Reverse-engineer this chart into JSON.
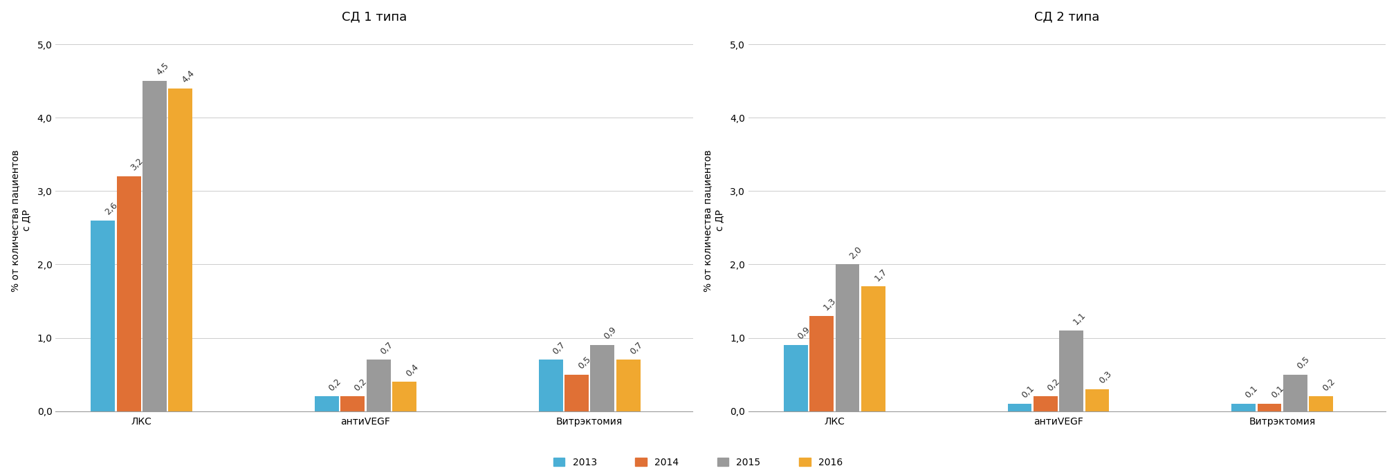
{
  "title1": "СД 1 типа",
  "title2": "СД 2 типа",
  "ylabel": "% от количества пациентов\nс ДР",
  "categories": [
    "ЛКС",
    "антиVEGF",
    "Витрэктомия"
  ],
  "legend_labels": [
    "2013",
    "2014",
    "2015",
    "2016"
  ],
  "colors": [
    "#4BAFD5",
    "#E07035",
    "#9A9A9A",
    "#F0A830"
  ],
  "sd1_data": {
    "ЛКС": [
      2.6,
      3.2,
      4.5,
      4.4
    ],
    "антиVEGF": [
      0.2,
      0.2,
      0.7,
      0.4
    ],
    "Витрэктомия": [
      0.7,
      0.5,
      0.9,
      0.7
    ]
  },
  "sd2_data": {
    "ЛКС": [
      0.9,
      1.3,
      2.0,
      1.7
    ],
    "антиVEGF": [
      0.1,
      0.2,
      1.1,
      0.3
    ],
    "Витрэктомия": [
      0.1,
      0.1,
      0.5,
      0.2
    ]
  },
  "ylim": [
    0,
    5.2
  ],
  "yticks": [
    0.0,
    1.0,
    2.0,
    3.0,
    4.0,
    5.0
  ],
  "ytick_labels": [
    "0,0",
    "1,0",
    "2,0",
    "3,0",
    "4,0",
    "5,0"
  ],
  "bar_width": 0.14,
  "annot_rotation": 45,
  "title_fontsize": 13,
  "label_fontsize": 10,
  "tick_fontsize": 10,
  "annot_fontsize": 9,
  "group_centers": [
    0.5,
    1.8,
    3.1
  ],
  "xlim": [
    0.0,
    3.7
  ]
}
